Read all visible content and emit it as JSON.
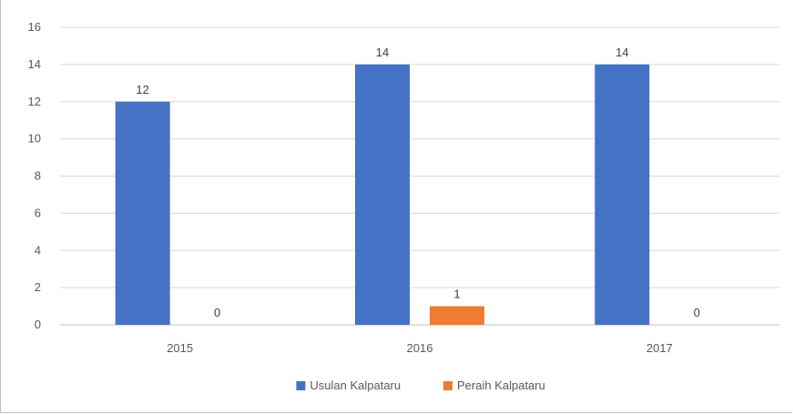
{
  "chart_data": {
    "type": "bar",
    "categories": [
      "2015",
      "2016",
      "2017"
    ],
    "series": [
      {
        "name": "Usulan Kalpataru",
        "values": [
          12,
          14,
          14
        ],
        "color": "#4472c4"
      },
      {
        "name": "Peraih Kalpataru",
        "values": [
          0,
          1,
          0
        ],
        "color": "#ed7d31"
      }
    ],
    "ylim": [
      0,
      16
    ],
    "yticks": [
      "0",
      "2",
      "4",
      "6",
      "8",
      "10",
      "12",
      "14",
      "16"
    ],
    "grid": true,
    "legend_position": "bottom",
    "data_labels": true
  }
}
